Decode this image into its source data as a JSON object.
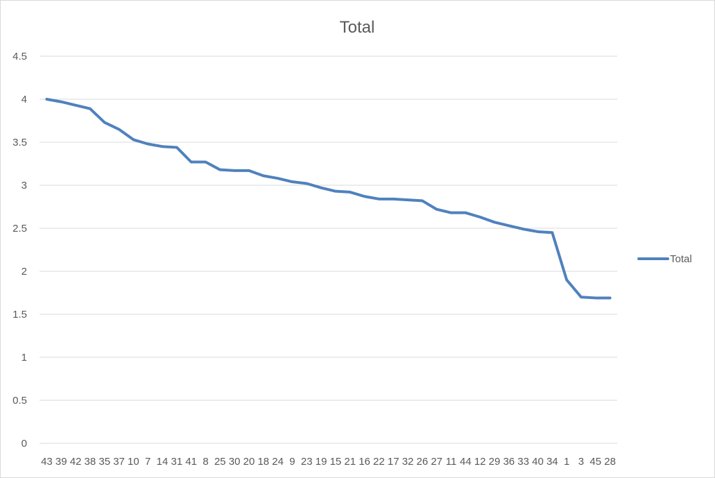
{
  "chart_data": {
    "type": "line",
    "title": "Total",
    "xlabel": "",
    "ylabel": "",
    "categories": [
      "43",
      "39",
      "42",
      "38",
      "35",
      "37",
      "10",
      "7",
      "14",
      "31",
      "41",
      "8",
      "25",
      "30",
      "20",
      "18",
      "24",
      "9",
      "23",
      "19",
      "15",
      "21",
      "16",
      "22",
      "17",
      "32",
      "26",
      "27",
      "11",
      "44",
      "12",
      "29",
      "36",
      "33",
      "40",
      "34",
      "1",
      "3",
      "45",
      "28"
    ],
    "series": [
      {
        "name": "Total",
        "values": [
          4.0,
          3.97,
          3.93,
          3.89,
          3.73,
          3.65,
          3.53,
          3.48,
          3.45,
          3.44,
          3.27,
          3.27,
          3.18,
          3.17,
          3.17,
          3.11,
          3.08,
          3.04,
          3.02,
          2.97,
          2.93,
          2.92,
          2.87,
          2.84,
          2.84,
          2.83,
          2.82,
          2.72,
          2.68,
          2.68,
          2.63,
          2.57,
          2.53,
          2.49,
          2.46,
          2.45,
          1.9,
          1.7,
          1.69,
          1.69
        ],
        "color": "#4f81bd"
      }
    ],
    "ylim": [
      0,
      4.5
    ],
    "yticks": [
      "0",
      "0.5",
      "1",
      "1.5",
      "2",
      "2.5",
      "3",
      "3.5",
      "4",
      "4.5"
    ],
    "grid": true,
    "legend": "right"
  }
}
